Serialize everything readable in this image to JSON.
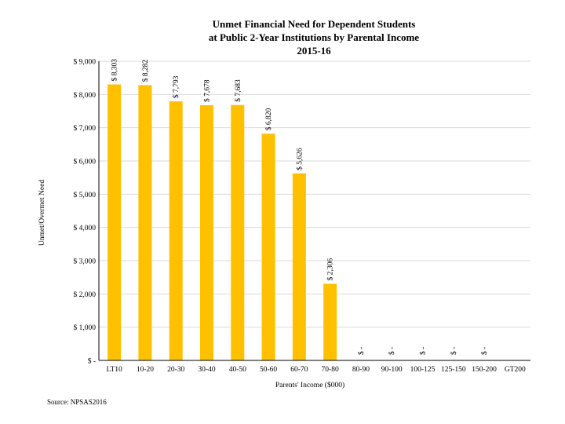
{
  "chart_data": {
    "type": "bar",
    "title_lines": [
      "Unmet Financial Need for Dependent Students",
      "at Public 2-Year Institutions by Parental Income",
      "2015-16"
    ],
    "xlabel": "Parents' Income ($000)",
    "ylabel": "Unmet/Overmet Need",
    "ylim": [
      0,
      9000
    ],
    "yticks": [
      0,
      1000,
      2000,
      3000,
      4000,
      5000,
      6000,
      7000,
      8000,
      9000
    ],
    "ytick_labels": [
      "$ -",
      "$ 1,000",
      "$ 2,000",
      "$ 3,000",
      "$ 4,000",
      "$ 5,000",
      "$ 6,000",
      "$ 7,000",
      "$ 8,000",
      "$ 9,000"
    ],
    "grid": true,
    "categories": [
      "LT10",
      "10-20",
      "20-30",
      "30-40",
      "40-50",
      "50-60",
      "60-70",
      "70-80",
      "80-90",
      "90-100",
      "100-125",
      "125-150",
      "150-200",
      "GT200"
    ],
    "values": [
      8303,
      8282,
      7793,
      7678,
      7683,
      6820,
      5626,
      2306,
      0,
      0,
      0,
      0,
      0,
      null
    ],
    "data_labels": [
      "$ 8,303",
      "$ 8,282",
      "$ 7,793",
      "$ 7,678",
      "$ 7,683",
      "$ 6,820",
      "$ 5,626",
      "$ 2,306",
      "$ -",
      "$ -",
      "$ -",
      "$ -",
      "$ -",
      ""
    ],
    "bar_color": "#FFC000",
    "grid_color": "#d9d9d9",
    "source": "Source: NPSAS2016"
  }
}
